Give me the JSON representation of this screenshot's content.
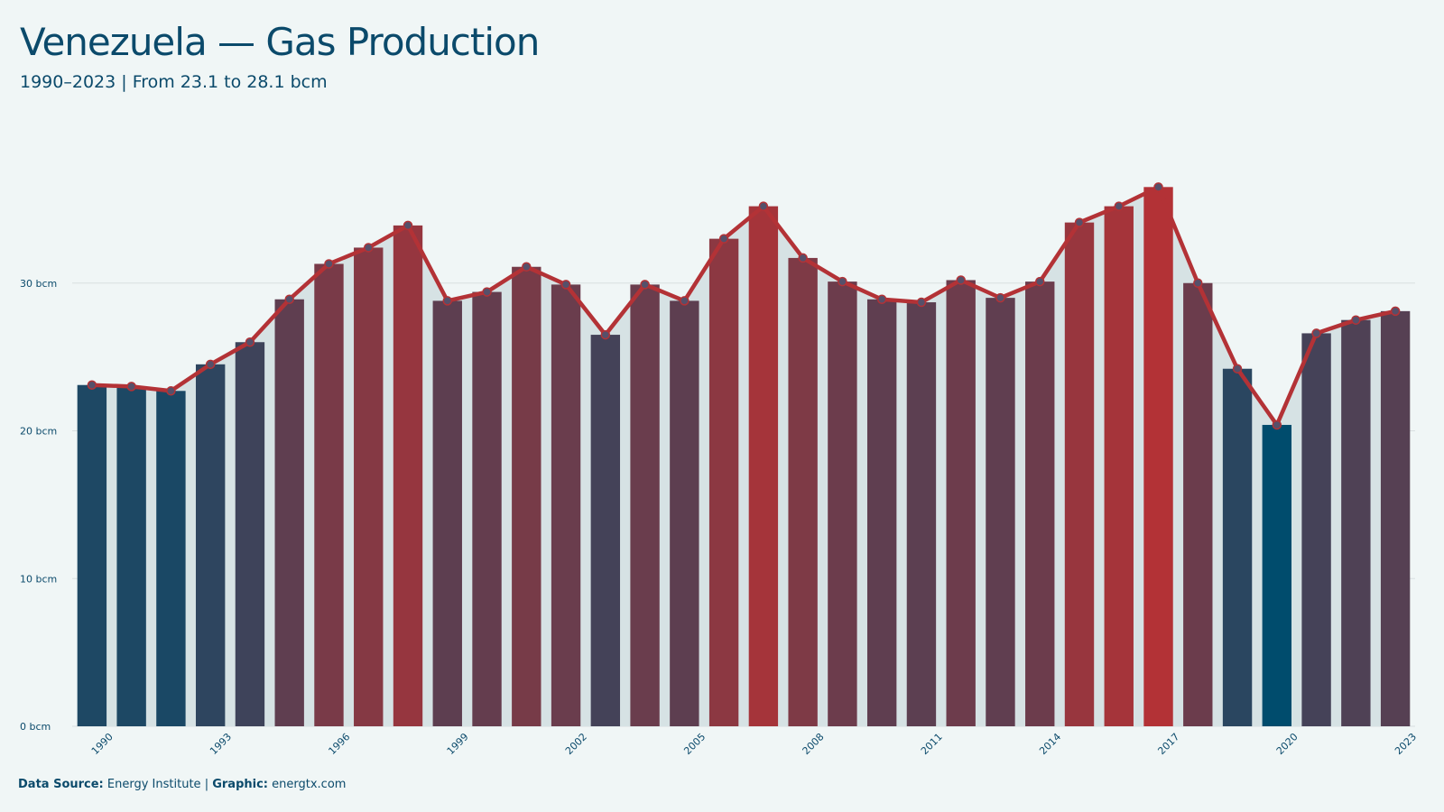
{
  "header": {
    "title": "Venezuela — Gas Production",
    "subtitle": "1990–2023 | From 23.1 to 28.1 bcm"
  },
  "footer": {
    "source_label": "Data Source:",
    "source_value": "Energy Institute",
    "separator": "|",
    "graphic_label": "Graphic:",
    "graphic_value": "energtx.com"
  },
  "colors": {
    "background": "#f0f6f6",
    "low": "#004c6d",
    "high": "#b33236",
    "line": "#b33236",
    "area": "#d6e2e4",
    "grid": "#d8dfe0",
    "text": "#0b4a6b",
    "marker_fill": "#56506a"
  },
  "chart_data": {
    "type": "bar",
    "overlay": "line",
    "x": [
      1990,
      1991,
      1992,
      1993,
      1994,
      1995,
      1996,
      1997,
      1998,
      1999,
      2000,
      2001,
      2002,
      2003,
      2004,
      2005,
      2006,
      2007,
      2008,
      2009,
      2010,
      2011,
      2012,
      2013,
      2014,
      2015,
      2016,
      2017,
      2018,
      2019,
      2020,
      2021,
      2022,
      2023
    ],
    "values": [
      23.1,
      23.0,
      22.7,
      24.5,
      26.0,
      28.9,
      31.3,
      32.4,
      33.9,
      28.8,
      29.4,
      31.1,
      29.9,
      26.5,
      29.9,
      28.8,
      33.0,
      35.2,
      31.7,
      30.1,
      28.9,
      28.7,
      30.2,
      29.0,
      30.1,
      34.1,
      35.2,
      36.5,
      30.0,
      24.2,
      20.4,
      26.6,
      27.5,
      28.1
    ],
    "x_tick_labels": [
      "1990",
      "1993",
      "1996",
      "1999",
      "2002",
      "2005",
      "2008",
      "2011",
      "2014",
      "2017",
      "2020",
      "2023"
    ],
    "y_ticks": [
      0,
      10,
      20,
      30
    ],
    "y_tick_labels": [
      "0 bcm",
      "10 bcm",
      "20 bcm",
      "30 bcm"
    ],
    "ylim": [
      0,
      40
    ],
    "grid": true,
    "unit": "bcm"
  }
}
